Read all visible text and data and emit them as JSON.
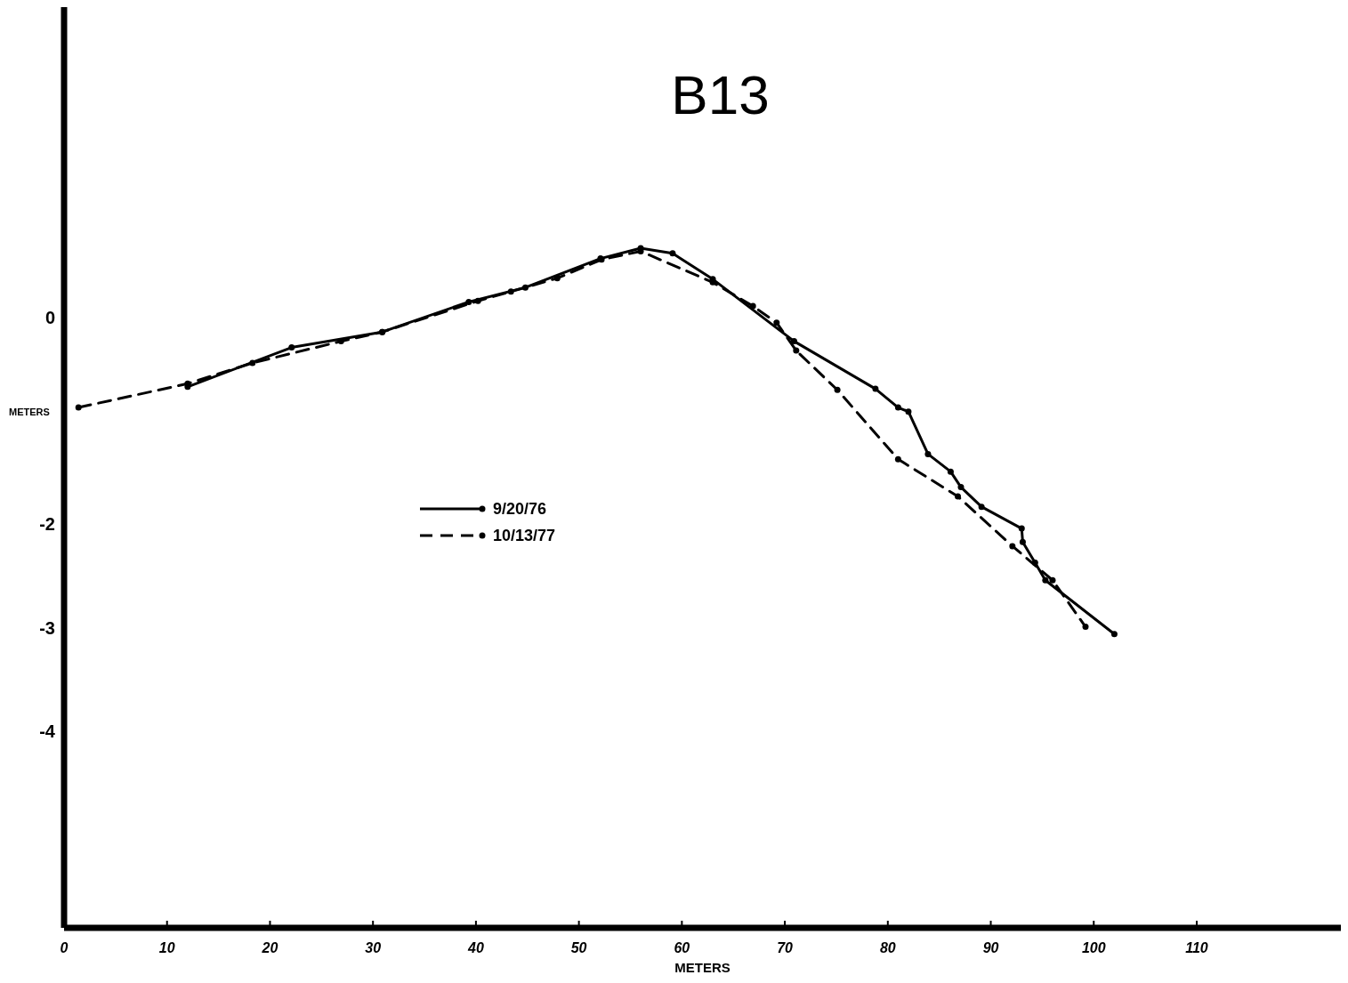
{
  "chart_data": {
    "type": "line",
    "title": "B13",
    "xlabel": "METERS",
    "ylabel": "METERS",
    "xlim": [
      0,
      124
    ],
    "xticks": [
      0,
      10,
      20,
      30,
      40,
      50,
      60,
      70,
      80,
      90,
      100,
      110
    ],
    "ylim": [
      -5.9,
      3
    ],
    "yticks": [
      0,
      {
        "value": -2,
        "label": "-2"
      },
      -3,
      -4
    ],
    "grid": false,
    "legend": "left",
    "marker": "circle",
    "series": [
      {
        "name": "9/20/76",
        "color": "#000000",
        "line_style": "solid",
        "x": [
          12.0,
          22.1,
          30.9,
          39.3,
          44.8,
          52.1,
          56.0,
          59.1,
          63.0,
          70.9,
          78.8,
          81.0,
          82.0,
          83.9,
          86.1,
          87.1,
          89.1,
          93.0,
          93.1,
          94.3,
          95.3,
          102.0
        ],
        "values": [
          -0.67,
          -0.29,
          -0.14,
          0.15,
          0.29,
          0.57,
          0.67,
          0.62,
          0.37,
          -0.23,
          -0.69,
          -0.87,
          -0.91,
          -1.32,
          -1.49,
          -1.64,
          -1.83,
          -2.04,
          -2.17,
          -2.37,
          -2.54,
          -3.06
        ]
      },
      {
        "name": "10/13/77",
        "color": "#000000",
        "line_style": "dashed",
        "x": [
          1.4,
          12.0,
          18.3,
          26.9,
          30.9,
          40.2,
          43.4,
          47.9,
          52.2,
          56.0,
          63.0,
          66.9,
          69.2,
          71.1,
          75.1,
          81.0,
          86.8,
          92.1,
          96.0,
          99.2
        ],
        "values": [
          -0.87,
          -0.64,
          -0.44,
          -0.23,
          -0.14,
          0.16,
          0.25,
          0.38,
          0.56,
          0.64,
          0.34,
          0.11,
          -0.05,
          -0.32,
          -0.7,
          -1.37,
          -1.73,
          -2.21,
          -2.54,
          -2.99
        ]
      }
    ]
  }
}
